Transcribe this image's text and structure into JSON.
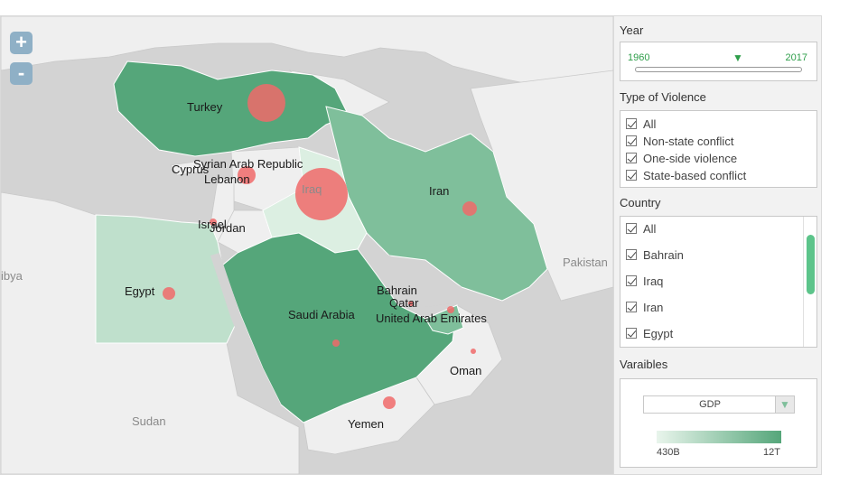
{
  "map": {
    "zoom_in_label": "+",
    "zoom_out_label": "-",
    "country_labels": {
      "turkey": "Turkey",
      "syria": "Syrian Arab Republic",
      "cyprus": "Cyprus",
      "lebanon": "Lebanon",
      "iraq": "Iraq",
      "iran": "Iran",
      "israel": "Israel",
      "jordan": "Jordan",
      "egypt": "Egypt",
      "saudi": "Saudi Arabia",
      "bahrain": "Bahrain",
      "qatar": "Qatar",
      "uae": "United Arab Emirates",
      "oman": "Oman",
      "yemen": "Yemen",
      "sudan": "Sudan",
      "libya": "ibya",
      "pakistan": "Pakistan"
    },
    "colors": {
      "dark_green": "#55a67a",
      "mid_green": "#7fbf9b",
      "light_green": "#bfe0cc",
      "pale_green": "#dcefe2",
      "marker": "#f06a6a",
      "land_gray": "#efefef",
      "water": "#d3d3d3"
    }
  },
  "filters": {
    "year": {
      "title": "Year",
      "start": "1960",
      "end": "2017"
    },
    "violence": {
      "title": "Type of Violence",
      "options": [
        "All",
        "Non-state conflict",
        "One-side violence",
        "State-based conflict"
      ]
    },
    "country": {
      "title": "Country",
      "options": [
        "All",
        "Bahrain",
        "Iraq",
        "Iran",
        "Egypt"
      ]
    },
    "variables": {
      "title": "Varaibles",
      "selected": "GDP",
      "legend_min": "430B",
      "legend_max": "12T"
    }
  }
}
